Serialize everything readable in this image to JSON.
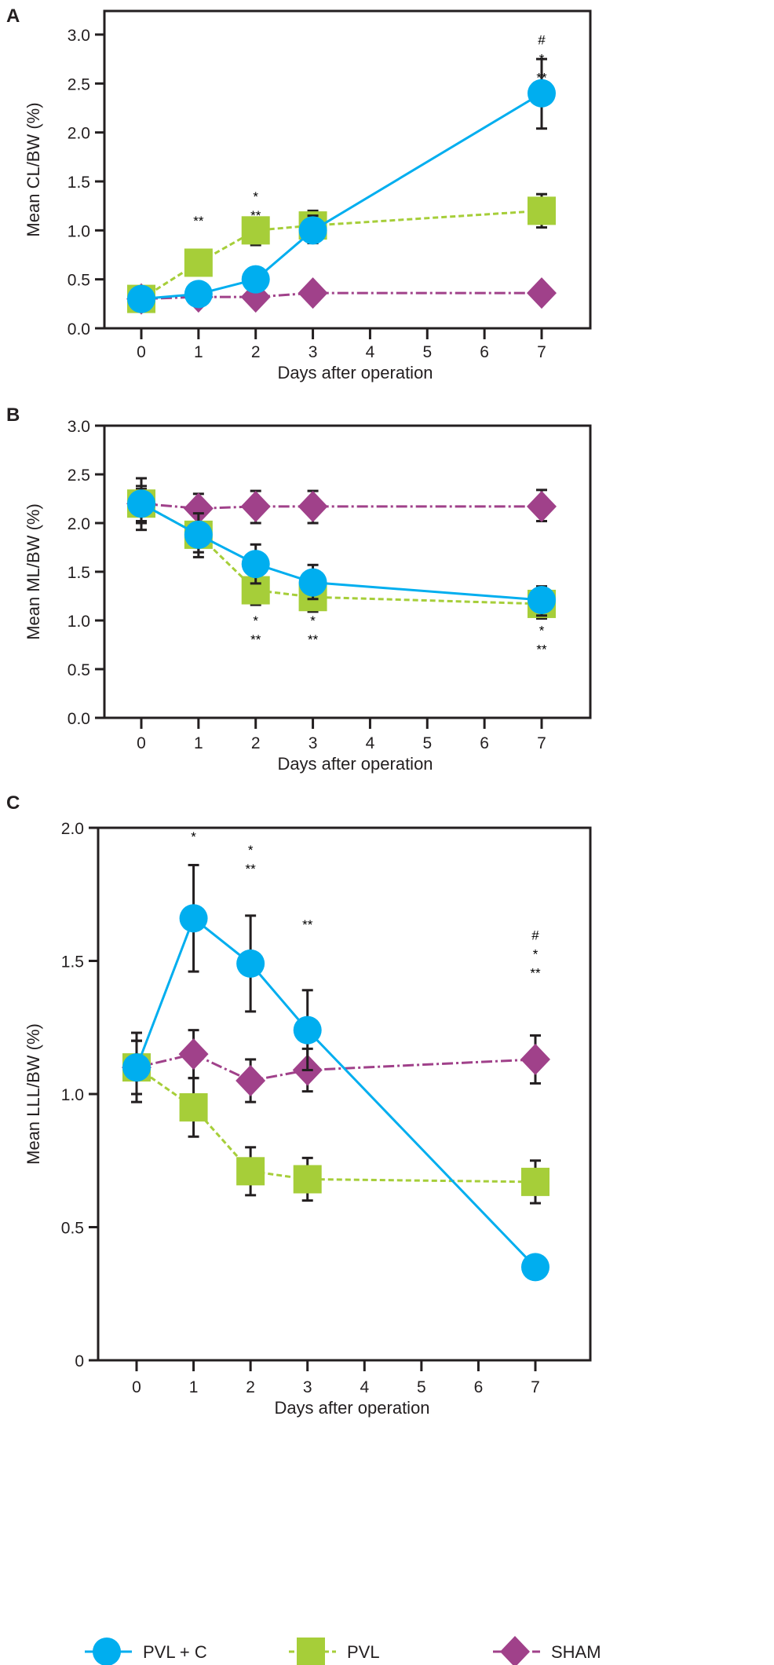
{
  "colors": {
    "PVL + C": "#00AEEF",
    "PVL": "#A6CE39",
    "SHAM": "#A0418A",
    "axis": "#231f20"
  },
  "legend": {
    "position": "bottom",
    "items": [
      {
        "name": "PVL + C",
        "marker": "circle",
        "line": "solid"
      },
      {
        "name": "PVL",
        "marker": "square",
        "line": "dashed"
      },
      {
        "name": "SHAM",
        "marker": "diamond",
        "line": "dash-dot"
      }
    ]
  },
  "chart_data": [
    {
      "panel": "A",
      "type": "line",
      "xlabel": "Days after operation",
      "ylabel": "Mean CL/BW (%)",
      "x_ticks": [
        0,
        1,
        2,
        3,
        4,
        5,
        6,
        7
      ],
      "y_ticks": [
        "0.0",
        "0.5",
        "1.0",
        "1.5",
        "2.0",
        "2.5",
        "3.0"
      ],
      "ylim": [
        0,
        3.0
      ],
      "xlim": [
        -0.6,
        7.3
      ],
      "grid": false,
      "x": [
        0,
        1,
        2,
        3,
        7
      ],
      "series": [
        {
          "name": "PVL + C",
          "values": [
            0.3,
            0.35,
            0.5,
            1.0,
            2.4
          ],
          "err_low": [
            null,
            null,
            null,
            0.87,
            2.04
          ],
          "err_high": [
            null,
            null,
            null,
            1.15,
            2.75
          ]
        },
        {
          "name": "PVL",
          "values": [
            0.3,
            0.67,
            1.0,
            1.05,
            1.2
          ],
          "err_low": [
            null,
            null,
            0.85,
            0.87,
            1.03
          ],
          "err_high": [
            null,
            null,
            1.12,
            1.2,
            1.37
          ]
        },
        {
          "name": "SHAM",
          "values": [
            0.3,
            0.32,
            0.32,
            0.36,
            0.36
          ],
          "err_low": [
            null,
            null,
            null,
            null,
            null
          ],
          "err_high": [
            null,
            null,
            null,
            null,
            null
          ]
        }
      ],
      "annotations": [
        {
          "x": 1,
          "y": 1.05,
          "lines": [
            "**"
          ]
        },
        {
          "x": 2,
          "y": 1.3,
          "lines": [
            "*",
            "**"
          ]
        },
        {
          "x": 7,
          "y": 2.9,
          "lines": [
            "#",
            "*",
            "**"
          ]
        }
      ]
    },
    {
      "panel": "B",
      "type": "line",
      "xlabel": "Days after operation",
      "ylabel": "Mean ML/BW (%)",
      "x_ticks": [
        0,
        1,
        2,
        3,
        4,
        5,
        6,
        7
      ],
      "y_ticks": [
        "0.0",
        "0.5",
        "1.0",
        "1.5",
        "2.0",
        "2.5",
        "3.0"
      ],
      "ylim": [
        0,
        3.0
      ],
      "xlim": [
        -0.6,
        7.3
      ],
      "grid": false,
      "x": [
        0,
        1,
        2,
        3,
        7
      ],
      "series": [
        {
          "name": "PVL + C",
          "values": [
            2.2,
            1.88,
            1.58,
            1.39,
            1.21
          ],
          "err_low": [
            1.93,
            1.65,
            1.38,
            1.22,
            1.05
          ],
          "err_high": [
            2.46,
            2.1,
            1.78,
            1.57,
            1.35
          ]
        },
        {
          "name": "PVL",
          "values": [
            2.2,
            1.88,
            1.31,
            1.24,
            1.17
          ],
          "err_low": [
            2.0,
            1.7,
            1.16,
            1.09,
            1.02
          ],
          "err_high": [
            2.35,
            2.0,
            1.4,
            1.3,
            1.25
          ]
        },
        {
          "name": "SHAM",
          "values": [
            2.2,
            2.15,
            2.17,
            2.17,
            2.17
          ],
          "err_low": [
            2.02,
            2.0,
            2.0,
            2.0,
            2.02
          ],
          "err_high": [
            2.38,
            2.3,
            2.33,
            2.33,
            2.34
          ]
        }
      ],
      "annotations": [
        {
          "x": 2,
          "y": 0.95,
          "lines": [
            "*",
            "**"
          ]
        },
        {
          "x": 3,
          "y": 0.95,
          "lines": [
            "*",
            "**"
          ]
        },
        {
          "x": 7,
          "y": 0.85,
          "lines": [
            "*",
            "**"
          ]
        }
      ]
    },
    {
      "panel": "C",
      "type": "line",
      "xlabel": "Days after operation",
      "ylabel": "Mean LLL/BW (%)",
      "x_ticks": [
        0,
        1,
        2,
        3,
        4,
        5,
        6,
        7
      ],
      "y_ticks": [
        "0",
        "0.5",
        "1.0",
        "1.5",
        "2.0"
      ],
      "ylim": [
        0,
        2.0
      ],
      "xlim": [
        -0.6,
        7.3
      ],
      "grid": false,
      "x": [
        0,
        1,
        2,
        3,
        7
      ],
      "series": [
        {
          "name": "PVL + C",
          "values": [
            1.1,
            1.66,
            1.49,
            1.24,
            0.35
          ],
          "err_low": [
            0.97,
            1.46,
            1.31,
            1.09,
            null
          ],
          "err_high": [
            1.23,
            1.86,
            1.67,
            1.39,
            null
          ]
        },
        {
          "name": "PVL",
          "values": [
            1.1,
            0.95,
            0.71,
            0.68,
            0.67
          ],
          "err_low": [
            1.0,
            0.84,
            0.62,
            0.6,
            0.59
          ],
          "err_high": [
            1.2,
            1.06,
            0.8,
            0.76,
            0.75
          ]
        },
        {
          "name": "SHAM",
          "values": [
            1.1,
            1.15,
            1.05,
            1.09,
            1.13
          ],
          "err_low": [
            1.0,
            1.06,
            0.97,
            1.01,
            1.04
          ],
          "err_high": [
            1.2,
            1.24,
            1.13,
            1.17,
            1.22
          ]
        }
      ],
      "annotations": [
        {
          "x": 1,
          "y": 1.95,
          "lines": [
            "*"
          ]
        },
        {
          "x": 2,
          "y": 1.9,
          "lines": [
            "*",
            "**"
          ]
        },
        {
          "x": 3,
          "y": 1.62,
          "lines": [
            "**"
          ]
        },
        {
          "x": 7,
          "y": 1.58,
          "lines": [
            "#",
            "*",
            "**"
          ]
        }
      ]
    }
  ]
}
